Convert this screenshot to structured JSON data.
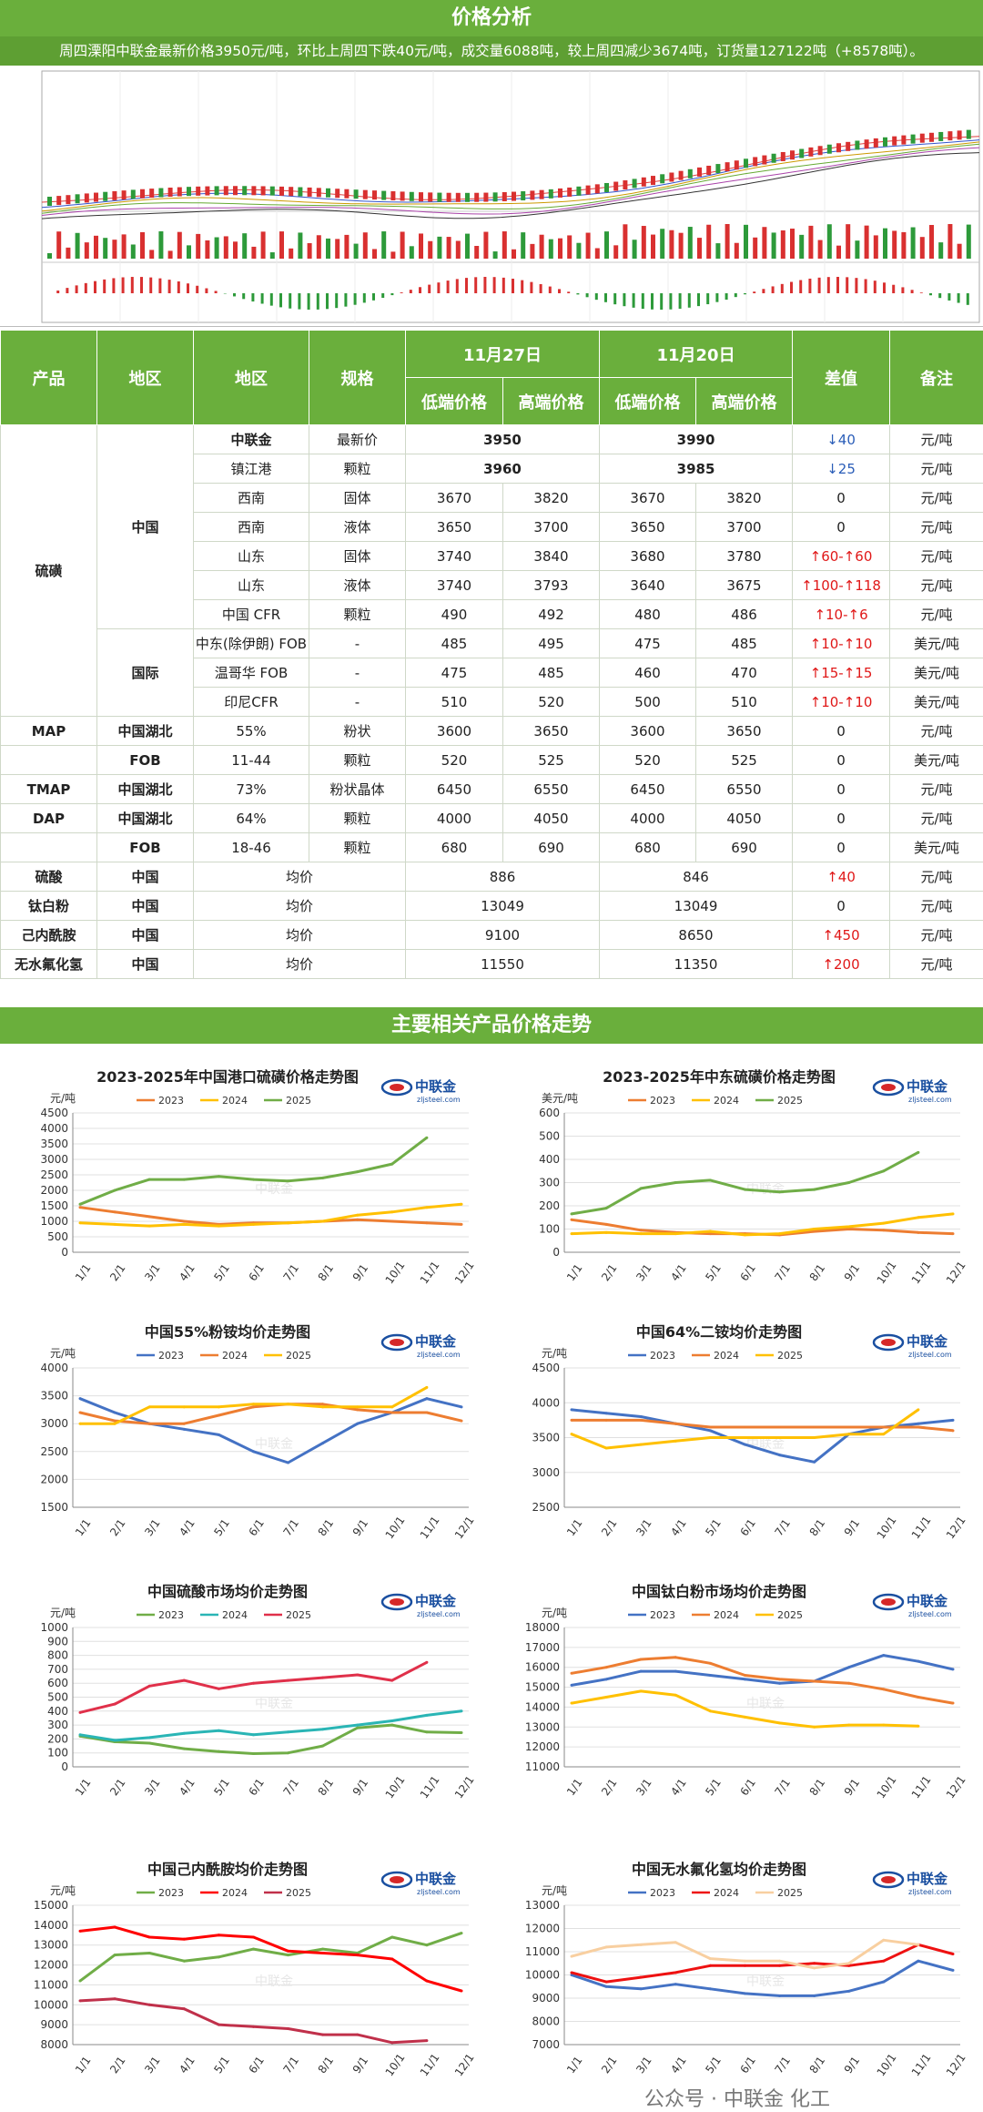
{
  "header": {
    "title": "价格分析",
    "summary": "周四溧阳中联金最新价格3950元/吨，环比上周四下跌40元/吨，成交量6088吨，较上周四减少3674吨，订货量127122吨（+8578吨）。"
  },
  "table": {
    "h_product": "产品",
    "h_region1": "地区",
    "h_region2": "地区",
    "h_spec": "规格",
    "h_date1": "11月27日",
    "h_date2": "11月20日",
    "h_low1": "低端价格",
    "h_high1": "高端价格",
    "h_low2": "低端价格",
    "h_high2": "高端价格",
    "h_diff": "差值",
    "h_note": "备注",
    "product_sulfur": "硫磺",
    "region_china": "中国",
    "region_intl": "国际",
    "product_map": "MAP",
    "product_fob1": "FOB",
    "product_tmap": "TMAP",
    "product_dap": "DAP",
    "product_fob2": "FOB",
    "rows": [
      {
        "r2": "中联金",
        "spec": "最新价",
        "p1": "3950",
        "p2": "3990",
        "diff": "↓40",
        "dir": "dn",
        "note": "元/吨"
      },
      {
        "r2": "镇江港",
        "spec": "颗粒",
        "p1": "3960",
        "p2": "3985",
        "diff": "↓25",
        "dir": "dn",
        "note": "元/吨"
      },
      {
        "r2": "西南",
        "spec": "固体",
        "l1": "3670",
        "h1": "3820",
        "l2": "3670",
        "h2": "3820",
        "diff": "0",
        "dir": "",
        "note": "元/吨"
      },
      {
        "r2": "西南",
        "spec": "液体",
        "l1": "3650",
        "h1": "3700",
        "l2": "3650",
        "h2": "3700",
        "diff": "0",
        "dir": "",
        "note": "元/吨"
      },
      {
        "r2": "山东",
        "spec": "固体",
        "l1": "3740",
        "h1": "3840",
        "l2": "3680",
        "h2": "3780",
        "diff": "↑60-↑60",
        "dir": "up",
        "note": "元/吨"
      },
      {
        "r2": "山东",
        "spec": "液体",
        "l1": "3740",
        "h1": "3793",
        "l2": "3640",
        "h2": "3675",
        "diff": "↑100-↑118",
        "dir": "up",
        "note": "元/吨"
      },
      {
        "r2": "中国 CFR",
        "spec": "颗粒",
        "l1": "490",
        "h1": "492",
        "l2": "480",
        "h2": "486",
        "diff": "↑10-↑6",
        "dir": "up",
        "note": "元/吨"
      },
      {
        "r2": "中东(除伊朗) FOB",
        "spec": "-",
        "l1": "485",
        "h1": "495",
        "l2": "475",
        "h2": "485",
        "diff": "↑10-↑10",
        "dir": "up",
        "note": "美元/吨"
      },
      {
        "r2": "温哥华 FOB",
        "spec": "-",
        "l1": "475",
        "h1": "485",
        "l2": "460",
        "h2": "470",
        "diff": "↑15-↑15",
        "dir": "up",
        "note": "美元/吨"
      },
      {
        "r2": "印尼CFR",
        "spec": "-",
        "l1": "510",
        "h1": "520",
        "l2": "500",
        "h2": "510",
        "diff": "↑10-↑10",
        "dir": "up",
        "note": "美元/吨"
      },
      {
        "r1": "中国湖北",
        "r2": "55%",
        "spec": "粉状",
        "l1": "3600",
        "h1": "3650",
        "l2": "3600",
        "h2": "3650",
        "diff": "0",
        "dir": "",
        "note": "元/吨"
      },
      {
        "r2": "11-44",
        "spec": "颗粒",
        "l1": "520",
        "h1": "525",
        "l2": "520",
        "h2": "525",
        "diff": "0",
        "dir": "",
        "note": "美元/吨"
      },
      {
        "r1": "中国湖北",
        "r2": "73%",
        "spec": "粉状晶体",
        "l1": "6450",
        "h1": "6550",
        "l2": "6450",
        "h2": "6550",
        "diff": "0",
        "dir": "",
        "note": "元/吨"
      },
      {
        "r1": "中国湖北",
        "r2": "64%",
        "spec": "颗粒",
        "l1": "4000",
        "h1": "4050",
        "l2": "4000",
        "h2": "4050",
        "diff": "0",
        "dir": "",
        "note": "元/吨"
      },
      {
        "r2": "18-46",
        "spec": "颗粒",
        "l1": "680",
        "h1": "690",
        "l2": "680",
        "h2": "690",
        "diff": "0",
        "dir": "",
        "note": "美元/吨"
      },
      {
        "p": "硫酸",
        "r1": "中国",
        "spec": "均价",
        "p1": "886",
        "p2": "846",
        "diff": "↑40",
        "dir": "up",
        "note": "元/吨"
      },
      {
        "p": "钛白粉",
        "r1": "中国",
        "spec": "均价",
        "p1": "13049",
        "p2": "13049",
        "diff": "0",
        "dir": "",
        "note": "元/吨"
      },
      {
        "p": "己内酰胺",
        "r1": "中国",
        "spec": "均价",
        "p1": "9100",
        "p2": "8650",
        "diff": "↑450",
        "dir": "up",
        "note": "元/吨"
      },
      {
        "p": "无水氟化氢",
        "r1": "中国",
        "spec": "均价",
        "p1": "11550",
        "p2": "11350",
        "diff": "↑200",
        "dir": "up",
        "note": "元/吨"
      }
    ]
  },
  "section2": {
    "title": "主要相关产品价格走势"
  },
  "logo": {
    "text": "中联金",
    "sub": "zljsteel.com"
  },
  "watermark": "公众号 · 中联金 化工",
  "months": [
    "1/1",
    "2/1",
    "3/1",
    "4/1",
    "5/1",
    "6/1",
    "7/1",
    "8/1",
    "9/1",
    "10/1",
    "11/1",
    "12/1"
  ],
  "colors": {
    "2023": "#4472c4",
    "2024": "#ed7d31",
    "2025": "#ffc000"
  },
  "chart_data": [
    {
      "type": "line",
      "title": "2023-2025年中国港口硫磺价格走势图",
      "ylabel": "元/吨",
      "ylim": [
        0,
        4500
      ],
      "ystep": 500,
      "x": [
        "1/1",
        "2/1",
        "3/1",
        "4/1",
        "5/1",
        "6/1",
        "7/1",
        "8/1",
        "9/1",
        "10/1",
        "11/1",
        "12/1"
      ],
      "series": [
        {
          "name": "2023",
          "color": "#ed7d31",
          "values": [
            1450,
            1300,
            1150,
            1000,
            900,
            950,
            950,
            1000,
            1050,
            1000,
            950,
            900
          ]
        },
        {
          "name": "2024",
          "color": "#ffc000",
          "values": [
            950,
            900,
            850,
            900,
            850,
            900,
            950,
            1000,
            1200,
            1300,
            1450,
            1550
          ]
        },
        {
          "name": "2025",
          "color": "#70ad47",
          "values": [
            1550,
            2000,
            2350,
            2350,
            2450,
            2350,
            2300,
            2400,
            2600,
            2850,
            3700,
            null
          ]
        }
      ]
    },
    {
      "type": "line",
      "title": "2023-2025年中东硫磺价格走势图",
      "ylabel": "美元/吨",
      "ylim": [
        0,
        600
      ],
      "ystep": 100,
      "x": [
        "1/1",
        "2/1",
        "3/1",
        "4/1",
        "5/1",
        "6/1",
        "7/1",
        "8/1",
        "9/1",
        "10/1",
        "11/1",
        "12/1"
      ],
      "series": [
        {
          "name": "2023",
          "color": "#ed7d31",
          "values": [
            140,
            120,
            95,
            85,
            80,
            80,
            75,
            90,
            100,
            95,
            85,
            80
          ]
        },
        {
          "name": "2024",
          "color": "#ffc000",
          "values": [
            80,
            85,
            80,
            80,
            90,
            75,
            80,
            100,
            110,
            125,
            150,
            165
          ]
        },
        {
          "name": "2025",
          "color": "#70ad47",
          "values": [
            165,
            190,
            275,
            300,
            310,
            270,
            260,
            270,
            300,
            350,
            430,
            null
          ]
        }
      ]
    },
    {
      "type": "line",
      "title": "中国55%粉铵均价走势图",
      "ylabel": "元/吨",
      "ylim": [
        1500,
        4000
      ],
      "ystep": 500,
      "x": [
        "1/1",
        "2/1",
        "3/1",
        "4/1",
        "5/1",
        "6/1",
        "7/1",
        "8/1",
        "9/1",
        "10/1",
        "11/1",
        "12/1"
      ],
      "series": [
        {
          "name": "2023",
          "color": "#4472c4",
          "values": [
            3450,
            3200,
            3000,
            2900,
            2800,
            2500,
            2300,
            2650,
            3000,
            3200,
            3450,
            3300
          ]
        },
        {
          "name": "2024",
          "color": "#ed7d31",
          "values": [
            3200,
            3050,
            3000,
            3000,
            3150,
            3300,
            3350,
            3350,
            3250,
            3200,
            3200,
            3050
          ]
        },
        {
          "name": "2025",
          "color": "#ffc000",
          "values": [
            3000,
            3000,
            3300,
            3300,
            3300,
            3350,
            3350,
            3300,
            3300,
            3300,
            3650,
            null
          ]
        }
      ]
    },
    {
      "type": "line",
      "title": "中国64%二铵均价走势图",
      "ylabel": "元/吨",
      "ylim": [
        2500,
        4500
      ],
      "ystep": 500,
      "x": [
        "1/1",
        "2/1",
        "3/1",
        "4/1",
        "5/1",
        "6/1",
        "7/1",
        "8/1",
        "9/1",
        "10/1",
        "11/1",
        "12/1"
      ],
      "series": [
        {
          "name": "2023",
          "color": "#4472c4",
          "values": [
            3900,
            3850,
            3800,
            3700,
            3600,
            3400,
            3250,
            3150,
            3550,
            3650,
            3700,
            3750
          ]
        },
        {
          "name": "2024",
          "color": "#ed7d31",
          "values": [
            3750,
            3750,
            3750,
            3700,
            3650,
            3650,
            3650,
            3650,
            3650,
            3650,
            3650,
            3600
          ]
        },
        {
          "name": "2025",
          "color": "#ffc000",
          "values": [
            3550,
            3350,
            3400,
            3450,
            3500,
            3500,
            3500,
            3500,
            3550,
            3550,
            3900,
            null
          ]
        }
      ]
    },
    {
      "type": "line",
      "title": "中国硫酸市场均价走势图",
      "ylabel": "元/吨",
      "ylim": [
        0,
        1000
      ],
      "ystep": 100,
      "x": [
        "1/1",
        "2/1",
        "3/1",
        "4/1",
        "5/1",
        "6/1",
        "7/1",
        "8/1",
        "9/1",
        "10/1",
        "11/1",
        "12/1"
      ],
      "series": [
        {
          "name": "2023",
          "color": "#70ad47",
          "values": [
            220,
            180,
            170,
            130,
            110,
            95,
            100,
            150,
            280,
            300,
            250,
            245
          ]
        },
        {
          "name": "2024",
          "color": "#2ab5b5",
          "values": [
            230,
            190,
            210,
            240,
            260,
            230,
            250,
            270,
            300,
            330,
            370,
            400
          ]
        },
        {
          "name": "2025",
          "color": "#e0304a",
          "values": [
            390,
            450,
            580,
            620,
            560,
            600,
            620,
            640,
            660,
            620,
            750,
            null
          ]
        }
      ]
    },
    {
      "type": "line",
      "title": "中国钛白粉市场均价走势图",
      "ylabel": "元/吨",
      "ylim": [
        11000,
        18000
      ],
      "ystep": 1000,
      "x": [
        "1/1",
        "2/1",
        "3/1",
        "4/1",
        "5/1",
        "6/1",
        "7/1",
        "8/1",
        "9/1",
        "10/1",
        "11/1",
        "12/1"
      ],
      "series": [
        {
          "name": "2023",
          "color": "#4472c4",
          "values": [
            15100,
            15400,
            15800,
            15800,
            15600,
            15400,
            15200,
            15300,
            16000,
            16600,
            16300,
            15900
          ]
        },
        {
          "name": "2024",
          "color": "#ed7d31",
          "values": [
            15700,
            16000,
            16400,
            16500,
            16200,
            15600,
            15400,
            15300,
            15200,
            14900,
            14500,
            14200
          ]
        },
        {
          "name": "2025",
          "color": "#ffc000",
          "values": [
            14200,
            14500,
            14800,
            14600,
            13800,
            13500,
            13200,
            13000,
            13100,
            13100,
            13050,
            null
          ]
        }
      ]
    },
    {
      "type": "line",
      "title": "中国己内酰胺均价走势图",
      "ylabel": "元/吨",
      "ylim": [
        8000,
        15000
      ],
      "ystep": 1000,
      "x": [
        "1/1",
        "2/1",
        "3/1",
        "4/1",
        "5/1",
        "6/1",
        "7/1",
        "8/1",
        "9/1",
        "10/1",
        "11/1",
        "12/1"
      ],
      "series": [
        {
          "name": "2023",
          "color": "#70ad47",
          "values": [
            11200,
            12500,
            12600,
            12200,
            12400,
            12800,
            12500,
            12800,
            12600,
            13400,
            13000,
            13600
          ]
        },
        {
          "name": "2024",
          "color": "#ff0000",
          "values": [
            13700,
            13900,
            13400,
            13300,
            13500,
            13400,
            12700,
            12600,
            12500,
            12300,
            11200,
            10700
          ]
        },
        {
          "name": "2025",
          "color": "#c0304a",
          "values": [
            10200,
            10300,
            10000,
            9800,
            9000,
            8900,
            8800,
            8500,
            8500,
            8100,
            8200,
            null
          ]
        }
      ]
    },
    {
      "type": "line",
      "title": "中国无水氟化氢均价走势图",
      "ylabel": "元/吨",
      "ylim": [
        7000,
        13000
      ],
      "ystep": 1000,
      "x": [
        "1/1",
        "2/1",
        "3/1",
        "4/1",
        "5/1",
        "6/1",
        "7/1",
        "8/1",
        "9/1",
        "10/1",
        "11/1",
        "12/1"
      ],
      "series": [
        {
          "name": "2023",
          "color": "#4472c4",
          "values": [
            10000,
            9500,
            9400,
            9600,
            9400,
            9200,
            9100,
            9100,
            9300,
            9700,
            10600,
            10200
          ]
        },
        {
          "name": "2024",
          "color": "#ee1111",
          "values": [
            10100,
            9700,
            9900,
            10100,
            10400,
            10400,
            10400,
            10500,
            10400,
            10600,
            11300,
            10900
          ]
        },
        {
          "name": "2025",
          "color": "#f8cfa0",
          "values": [
            10800,
            11200,
            11300,
            11400,
            10700,
            10600,
            10600,
            10300,
            10500,
            11500,
            11300,
            null
          ]
        }
      ]
    }
  ]
}
